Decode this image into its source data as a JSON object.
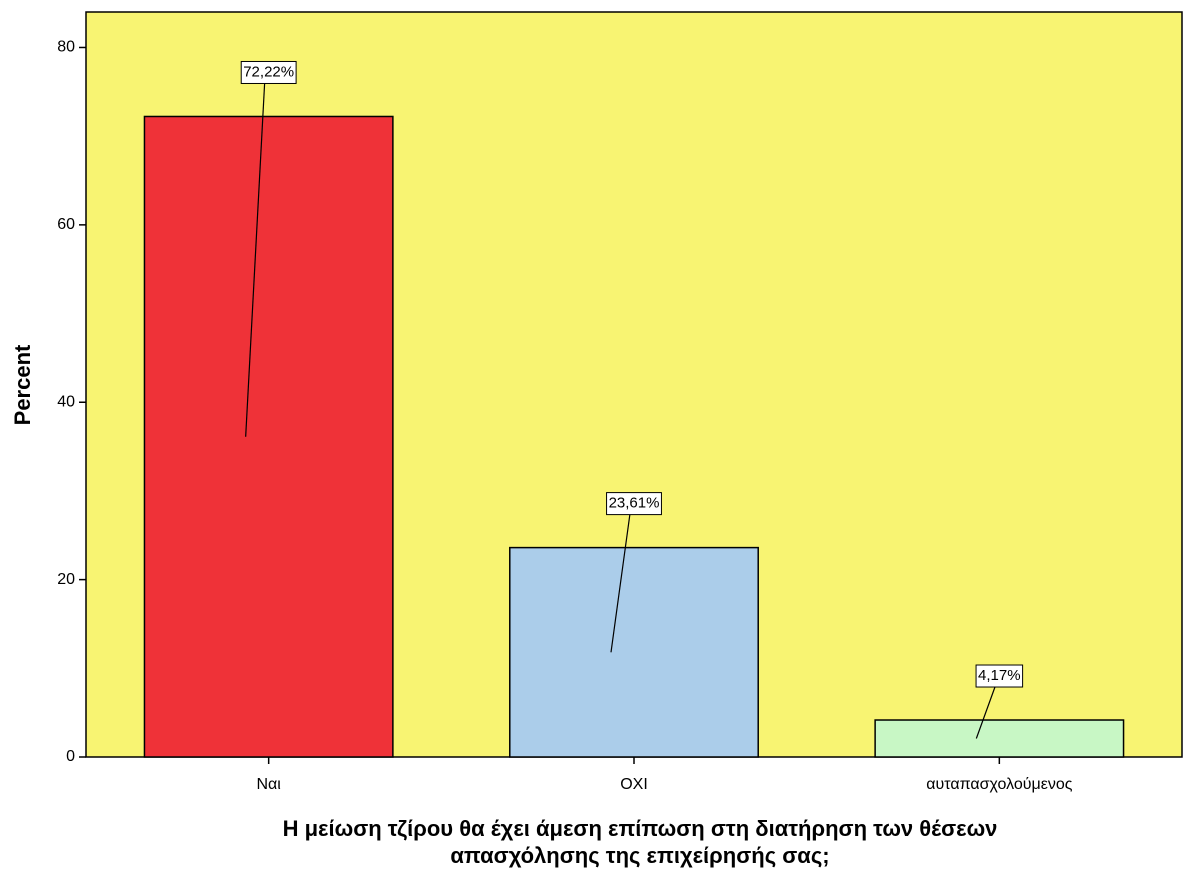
{
  "chart_data": {
    "type": "bar",
    "x_label": [
      "Η μείωση τζίρου θα έχει άμεση επίπωση στη διατήρηση των θέσεων",
      "απασχόλησης της επιχείρησής σας;"
    ],
    "y_label": "Percent",
    "categories": [
      "Ναι",
      "ΟΧΙ",
      "αυταπασχολούμενος"
    ],
    "values": [
      72.22,
      23.61,
      4.17
    ],
    "value_labels": [
      "72,22%",
      "23,61%",
      "4,17%"
    ],
    "colors": [
      "#ef3238",
      "#abcdea",
      "#c8f7c5"
    ],
    "background": "#f8f472",
    "ylim": [
      0,
      84
    ],
    "yticks": [
      0,
      20,
      40,
      60,
      80
    ]
  }
}
